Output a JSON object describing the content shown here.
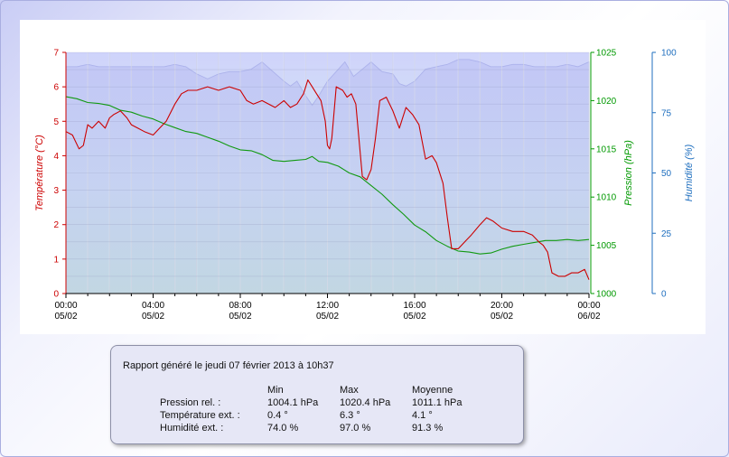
{
  "chart_data": {
    "type": "line",
    "x_ticks": [
      {
        "time": "00:00",
        "date": "05/02"
      },
      {
        "time": "04:00",
        "date": "05/02"
      },
      {
        "time": "08:00",
        "date": "05/02"
      },
      {
        "time": "12:00",
        "date": "05/02"
      },
      {
        "time": "16:00",
        "date": "05/02"
      },
      {
        "time": "20:00",
        "date": "05/02"
      },
      {
        "time": "00:00",
        "date": "06/02"
      }
    ],
    "xlabel": "date",
    "xlim_hours": [
      0,
      24
    ],
    "grid": true,
    "y_axes": {
      "temperature": {
        "label": "Température (°C)",
        "range": [
          0,
          7
        ],
        "ticks": [
          "0",
          "1",
          "2",
          "3",
          "4",
          "5",
          "6",
          "7"
        ],
        "color": "#cc0000"
      },
      "pressure": {
        "label": "Pression (hPa)",
        "range": [
          1000,
          1025
        ],
        "ticks": [
          "1000",
          "1005",
          "1010",
          "1015",
          "1020",
          "1025"
        ],
        "color": "#009900"
      },
      "humidity": {
        "label": "Humidité (%)",
        "range": [
          0,
          100
        ],
        "ticks": [
          "0",
          "25",
          "50",
          "75",
          "100"
        ],
        "color": "#1f6fbf"
      }
    },
    "series": [
      {
        "key": "temperature",
        "axis": "temperature",
        "color": "#cc0000",
        "x_hours": [
          0,
          0.3,
          0.6,
          0.8,
          1.0,
          1.2,
          1.5,
          1.8,
          2.0,
          2.2,
          2.5,
          2.8,
          3.0,
          3.3,
          3.6,
          4.0,
          4.3,
          4.6,
          5.0,
          5.3,
          5.6,
          6.0,
          6.5,
          7.0,
          7.5,
          8.0,
          8.3,
          8.6,
          9.0,
          9.3,
          9.6,
          10.0,
          10.3,
          10.6,
          10.9,
          11.1,
          11.3,
          11.5,
          11.7,
          11.9,
          12.0,
          12.1,
          12.2,
          12.4,
          12.7,
          12.9,
          13.1,
          13.3,
          13.6,
          13.8,
          14.0,
          14.2,
          14.4,
          14.7,
          15.0,
          15.3,
          15.6,
          15.9,
          16.2,
          16.5,
          16.8,
          17.0,
          17.3,
          17.5,
          17.7,
          18.0,
          18.3,
          18.6,
          19.0,
          19.3,
          19.6,
          20.0,
          20.5,
          21.0,
          21.4,
          21.7,
          21.9,
          22.1,
          22.3,
          22.6,
          22.9,
          23.2,
          23.5,
          23.8,
          24.0
        ],
        "values": [
          4.7,
          4.6,
          4.2,
          4.3,
          4.9,
          4.8,
          5.0,
          4.8,
          5.1,
          5.2,
          5.3,
          5.1,
          4.9,
          4.8,
          4.7,
          4.6,
          4.8,
          5.0,
          5.5,
          5.8,
          5.9,
          5.9,
          6.0,
          5.9,
          6.0,
          5.9,
          5.6,
          5.5,
          5.6,
          5.5,
          5.4,
          5.6,
          5.4,
          5.5,
          5.8,
          6.2,
          6.0,
          5.8,
          5.6,
          5.0,
          4.3,
          4.2,
          4.5,
          6.0,
          5.9,
          5.7,
          5.8,
          5.5,
          3.4,
          3.3,
          3.6,
          4.5,
          5.6,
          5.7,
          5.3,
          4.8,
          5.4,
          5.2,
          4.9,
          3.9,
          4.0,
          3.8,
          3.2,
          2.2,
          1.3,
          1.3,
          1.5,
          1.7,
          2.0,
          2.2,
          2.1,
          1.9,
          1.8,
          1.8,
          1.7,
          1.5,
          1.4,
          1.2,
          0.6,
          0.5,
          0.5,
          0.6,
          0.6,
          0.7,
          0.4
        ]
      },
      {
        "key": "pressure",
        "axis": "pressure",
        "color": "#119911",
        "x_hours": [
          0,
          0.5,
          1.0,
          1.5,
          2.0,
          2.5,
          3.0,
          3.5,
          4.0,
          4.5,
          5.0,
          5.5,
          6.0,
          6.5,
          7.0,
          7.5,
          8.0,
          8.5,
          9.0,
          9.5,
          10.0,
          10.5,
          11.0,
          11.3,
          11.6,
          12.0,
          12.5,
          13.0,
          13.5,
          14.0,
          14.5,
          15.0,
          15.5,
          16.0,
          16.5,
          17.0,
          17.5,
          18.0,
          18.5,
          19.0,
          19.5,
          20.0,
          20.5,
          21.0,
          21.5,
          22.0,
          22.5,
          23.0,
          23.5,
          24.0
        ],
        "values": [
          1020.4,
          1020.2,
          1019.8,
          1019.7,
          1019.5,
          1019.0,
          1018.8,
          1018.4,
          1018.1,
          1017.6,
          1017.2,
          1016.8,
          1016.6,
          1016.2,
          1015.8,
          1015.3,
          1014.9,
          1014.8,
          1014.4,
          1013.8,
          1013.7,
          1013.8,
          1013.9,
          1014.2,
          1013.7,
          1013.6,
          1013.2,
          1012.5,
          1012.1,
          1011.2,
          1010.3,
          1009.2,
          1008.2,
          1007.1,
          1006.4,
          1005.5,
          1004.9,
          1004.4,
          1004.3,
          1004.1,
          1004.2,
          1004.6,
          1004.9,
          1005.1,
          1005.3,
          1005.5,
          1005.5,
          1005.6,
          1005.5,
          1005.6
        ]
      },
      {
        "key": "humidity",
        "axis": "humidity",
        "color": "#9fa6ea",
        "fill": true,
        "x_hours": [
          0,
          0.5,
          1.0,
          1.5,
          2.0,
          2.5,
          3.0,
          3.5,
          4.0,
          4.5,
          5.0,
          5.5,
          6.0,
          6.5,
          7.0,
          7.5,
          8.0,
          8.5,
          9.0,
          9.5,
          10.0,
          10.3,
          10.6,
          11.0,
          11.3,
          11.6,
          12.0,
          12.4,
          12.8,
          13.2,
          13.6,
          14.0,
          14.5,
          15.0,
          15.3,
          15.6,
          16.0,
          16.5,
          17.0,
          17.5,
          18.0,
          18.5,
          19.0,
          19.5,
          20.0,
          20.5,
          21.0,
          21.5,
          22.0,
          22.5,
          23.0,
          23.5,
          24.0
        ],
        "values": [
          94,
          94,
          95,
          94,
          94,
          94,
          94,
          94,
          94,
          94,
          95,
          94,
          91,
          89,
          91,
          92,
          92,
          93,
          96,
          92,
          88,
          86,
          88,
          82,
          78,
          82,
          88,
          92,
          96,
          90,
          93,
          96,
          92,
          91,
          87,
          86,
          88,
          93,
          94,
          95,
          97,
          97,
          96,
          94,
          94,
          95,
          95,
          94,
          94,
          94,
          95,
          94,
          96
        ]
      }
    ]
  },
  "report": {
    "title": "Rapport généré le jeudi 07 février 2013 à 10h37",
    "col_min": "Min",
    "col_max": "Max",
    "col_avg": "Moyenne",
    "rows": [
      {
        "label": "Pression rel. :",
        "min": "1004.1 hPa",
        "max": "1020.4 hPa",
        "avg": "1011.1 hPa"
      },
      {
        "label": "Température ext. :",
        "min": "0.4 °",
        "max": "6.3 °",
        "avg": "4.1 °"
      },
      {
        "label": "Humidité ext. :",
        "min": "74.0 %",
        "max": "97.0 %",
        "avg": "91.3 %"
      }
    ]
  }
}
